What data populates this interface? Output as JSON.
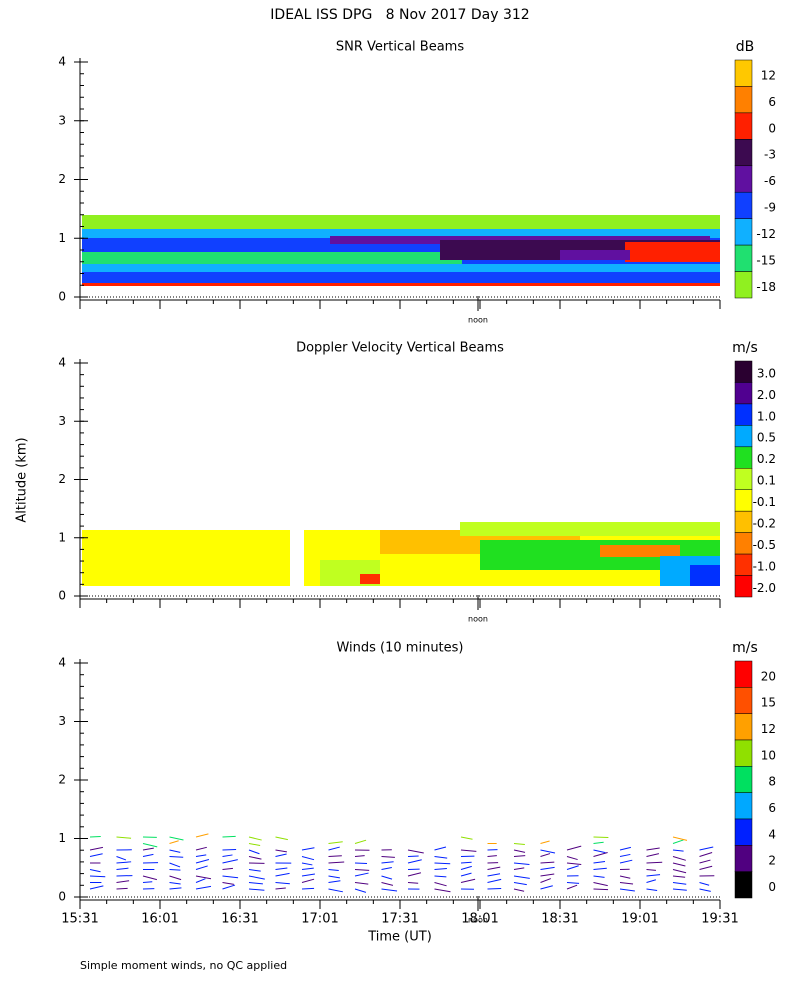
{
  "title": "IDEAL ISS DPG   8 Nov 2017 Day 312",
  "y_label": "Altitude (km)",
  "x_label": "Time (UT)",
  "footnote": "Simple moment winds, no QC applied",
  "chart_data": [
    {
      "type": "heatmap",
      "title": "SNR Vertical Beams",
      "unit": "dB",
      "annotation": "noon",
      "ylim": [
        0,
        4
      ],
      "yticks": [
        0,
        1,
        2,
        3,
        4
      ],
      "colorbar": {
        "levels": [
          12,
          6,
          0,
          -3,
          -6,
          -9,
          -12,
          -15,
          -18
        ],
        "colors": [
          "#ffc800",
          "#ff8000",
          "#ff2000",
          "#3c0a50",
          "#6010a0",
          "#1040ff",
          "#10b0ff",
          "#20e070",
          "#90f020"
        ]
      }
    },
    {
      "type": "heatmap",
      "title": "Doppler Velocity Vertical Beams",
      "unit": "m/s",
      "annotation": "noon",
      "ylim": [
        0,
        4
      ],
      "yticks": [
        0,
        1,
        2,
        3,
        4
      ],
      "colorbar": {
        "levels": [
          {
            "value": 3,
            "label": "3.0"
          },
          {
            "value": 2,
            "label": "2.0"
          },
          {
            "value": 1,
            "label": "1.0"
          },
          0.5,
          0.2,
          0.1,
          -0.1,
          -0.2,
          -0.5,
          {
            "value": -1,
            "label": "-1.0"
          },
          {
            "value": -2,
            "label": "-2.0"
          }
        ],
        "colors": [
          "#2a0030",
          "#500090",
          "#0030ff",
          "#00aaff",
          "#20e020",
          "#c0ff20",
          "#ffff00",
          "#ffc000",
          "#ff8000",
          "#ff3000",
          "#ff0000"
        ]
      }
    },
    {
      "type": "barbs",
      "title": "Winds (10 minutes)",
      "unit": "m/s",
      "annotation": "noon",
      "ylim": [
        0,
        4
      ],
      "yticks": [
        0,
        1,
        2,
        3,
        4
      ],
      "xticks": [
        "15:31",
        "16:01",
        "16:31",
        "17:01",
        "17:31",
        "18:01",
        "18:31",
        "19:01",
        "19:31"
      ],
      "colorbar": {
        "levels": [
          20,
          15,
          12,
          10,
          8,
          6,
          4,
          2,
          0
        ],
        "colors": [
          "#ff0000",
          "#ff5000",
          "#ffa000",
          "#90e000",
          "#00e060",
          "#00a8ff",
          "#0020ff",
          "#500080",
          "#000000"
        ]
      }
    }
  ]
}
